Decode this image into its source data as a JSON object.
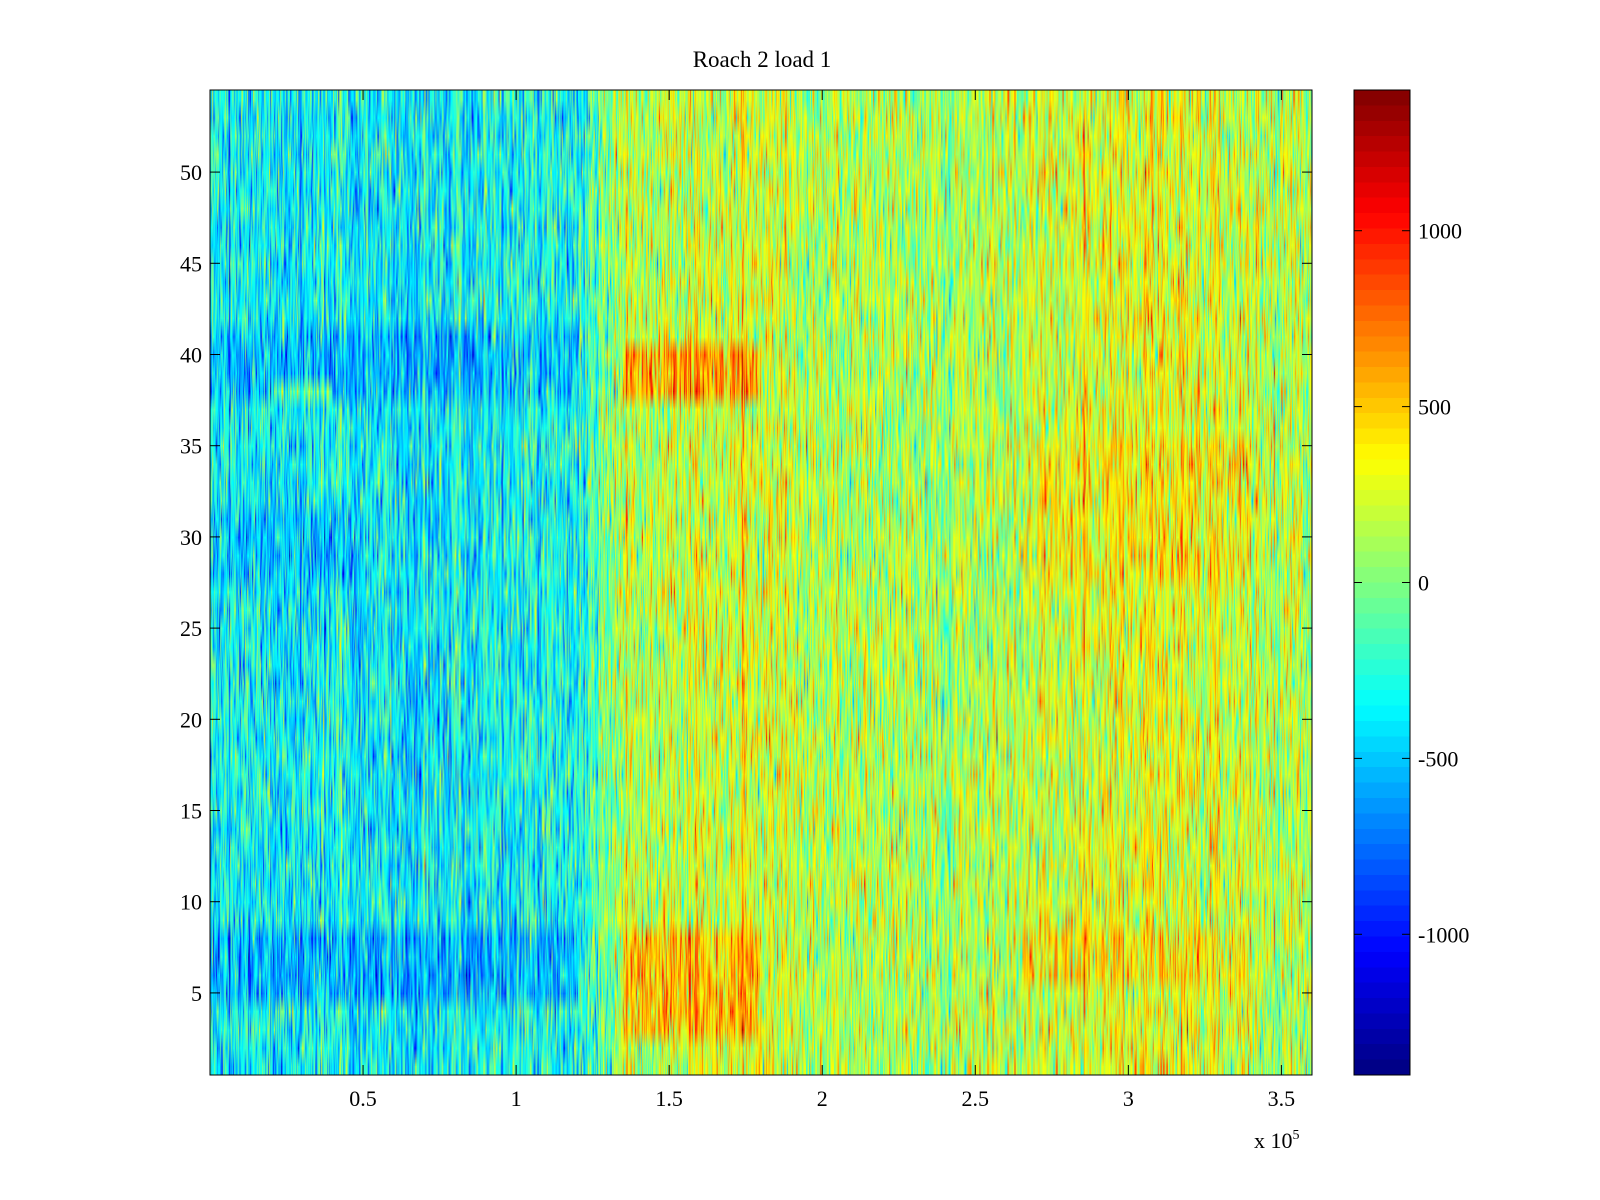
{
  "chart_data": {
    "type": "heatmap",
    "title": "Roach 2 load 1",
    "xlabel": "",
    "ylabel": "",
    "x_multiplier_label": "x 10",
    "x_multiplier_exponent": "5",
    "xlim": [
      0,
      360000
    ],
    "ylim": [
      0.5,
      54.5
    ],
    "rows": 54,
    "xticks": [
      0.5,
      1,
      1.5,
      2,
      2.5,
      3,
      3.5
    ],
    "xtick_labels": [
      "0.5",
      "1",
      "1.5",
      "2",
      "2.5",
      "3",
      "3.5"
    ],
    "yticks": [
      5,
      10,
      15,
      20,
      25,
      30,
      35,
      40,
      45,
      50
    ],
    "ytick_labels": [
      "5",
      "10",
      "15",
      "20",
      "25",
      "30",
      "35",
      "40",
      "45",
      "50"
    ],
    "colorbar": {
      "colormap": "jet",
      "clim": [
        -1400,
        1400
      ],
      "ticks": [
        1000,
        500,
        0,
        -500,
        -1000
      ],
      "tick_labels": [
        "1000",
        "500",
        "0",
        "-500",
        "-1000"
      ]
    },
    "trend": {
      "description_points_x": [
        0,
        60000,
        120000,
        135000,
        175000,
        200000,
        250000,
        300000,
        340000,
        360000
      ],
      "mean_value": [
        -350,
        -380,
        -300,
        150,
        250,
        150,
        120,
        280,
        200,
        120
      ]
    },
    "hot_bands": [
      {
        "rows": [
          38,
          40
        ],
        "x_range": [
          135000,
          180000
        ],
        "value": 900
      },
      {
        "rows": [
          38,
          38
        ],
        "x_range": [
          20000,
          40000
        ],
        "value": 350
      },
      {
        "rows": [
          3,
          8
        ],
        "x_range": [
          135000,
          180000
        ],
        "value": 800
      },
      {
        "rows": [
          6,
          8
        ],
        "x_range": [
          265000,
          340000
        ],
        "value": 500
      },
      {
        "rows": [
          28,
          35
        ],
        "x_range": [
          270000,
          340000
        ],
        "value": 450
      }
    ],
    "cold_bands": [
      {
        "rows": [
          38,
          41
        ],
        "x_range": [
          0,
          120000
        ],
        "value": -700
      },
      {
        "rows": [
          5,
          8
        ],
        "x_range": [
          0,
          120000
        ],
        "value": -750
      },
      {
        "rows": [
          28,
          31
        ],
        "x_range": [
          0,
          50000
        ],
        "value": -650
      }
    ]
  }
}
